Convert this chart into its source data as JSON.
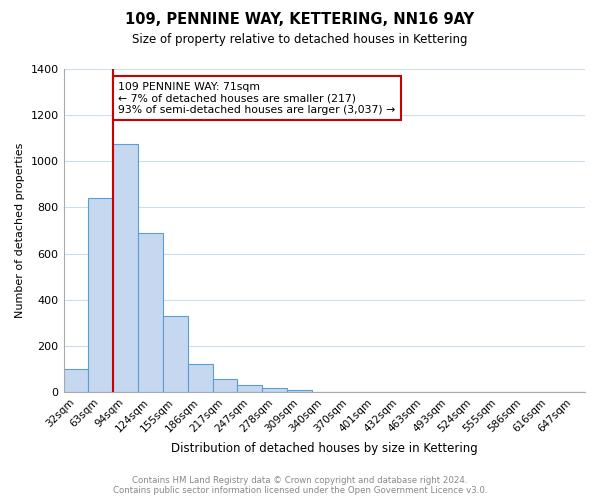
{
  "title": "109, PENNINE WAY, KETTERING, NN16 9AY",
  "subtitle": "Size of property relative to detached houses in Kettering",
  "xlabel": "Distribution of detached houses by size in Kettering",
  "ylabel": "Number of detached properties",
  "bar_values": [
    100,
    840,
    1075,
    690,
    330,
    120,
    55,
    30,
    18,
    10,
    0,
    0,
    0,
    0,
    0,
    0,
    0,
    0,
    0,
    0,
    0
  ],
  "bar_labels": [
    "32sqm",
    "63sqm",
    "94sqm",
    "124sqm",
    "155sqm",
    "186sqm",
    "217sqm",
    "247sqm",
    "278sqm",
    "309sqm",
    "340sqm",
    "370sqm",
    "401sqm",
    "432sqm",
    "463sqm",
    "493sqm",
    "524sqm",
    "555sqm",
    "586sqm",
    "616sqm",
    "647sqm"
  ],
  "bar_color": "#c5d8f0",
  "bar_edge_color": "#5a9fd4",
  "ylim": [
    0,
    1400
  ],
  "yticks": [
    0,
    200,
    400,
    600,
    800,
    1000,
    1200,
    1400
  ],
  "annotation_text": "109 PENNINE WAY: 71sqm\n← 7% of detached houses are smaller (217)\n93% of semi-detached houses are larger (3,037) →",
  "annotation_box_color": "#ffffff",
  "annotation_border_color": "#cc0000",
  "footer_text": "Contains HM Land Registry data © Crown copyright and database right 2024.\nContains public sector information licensed under the Open Government Licence v3.0.",
  "background_color": "#ffffff",
  "grid_color": "#ccdded"
}
